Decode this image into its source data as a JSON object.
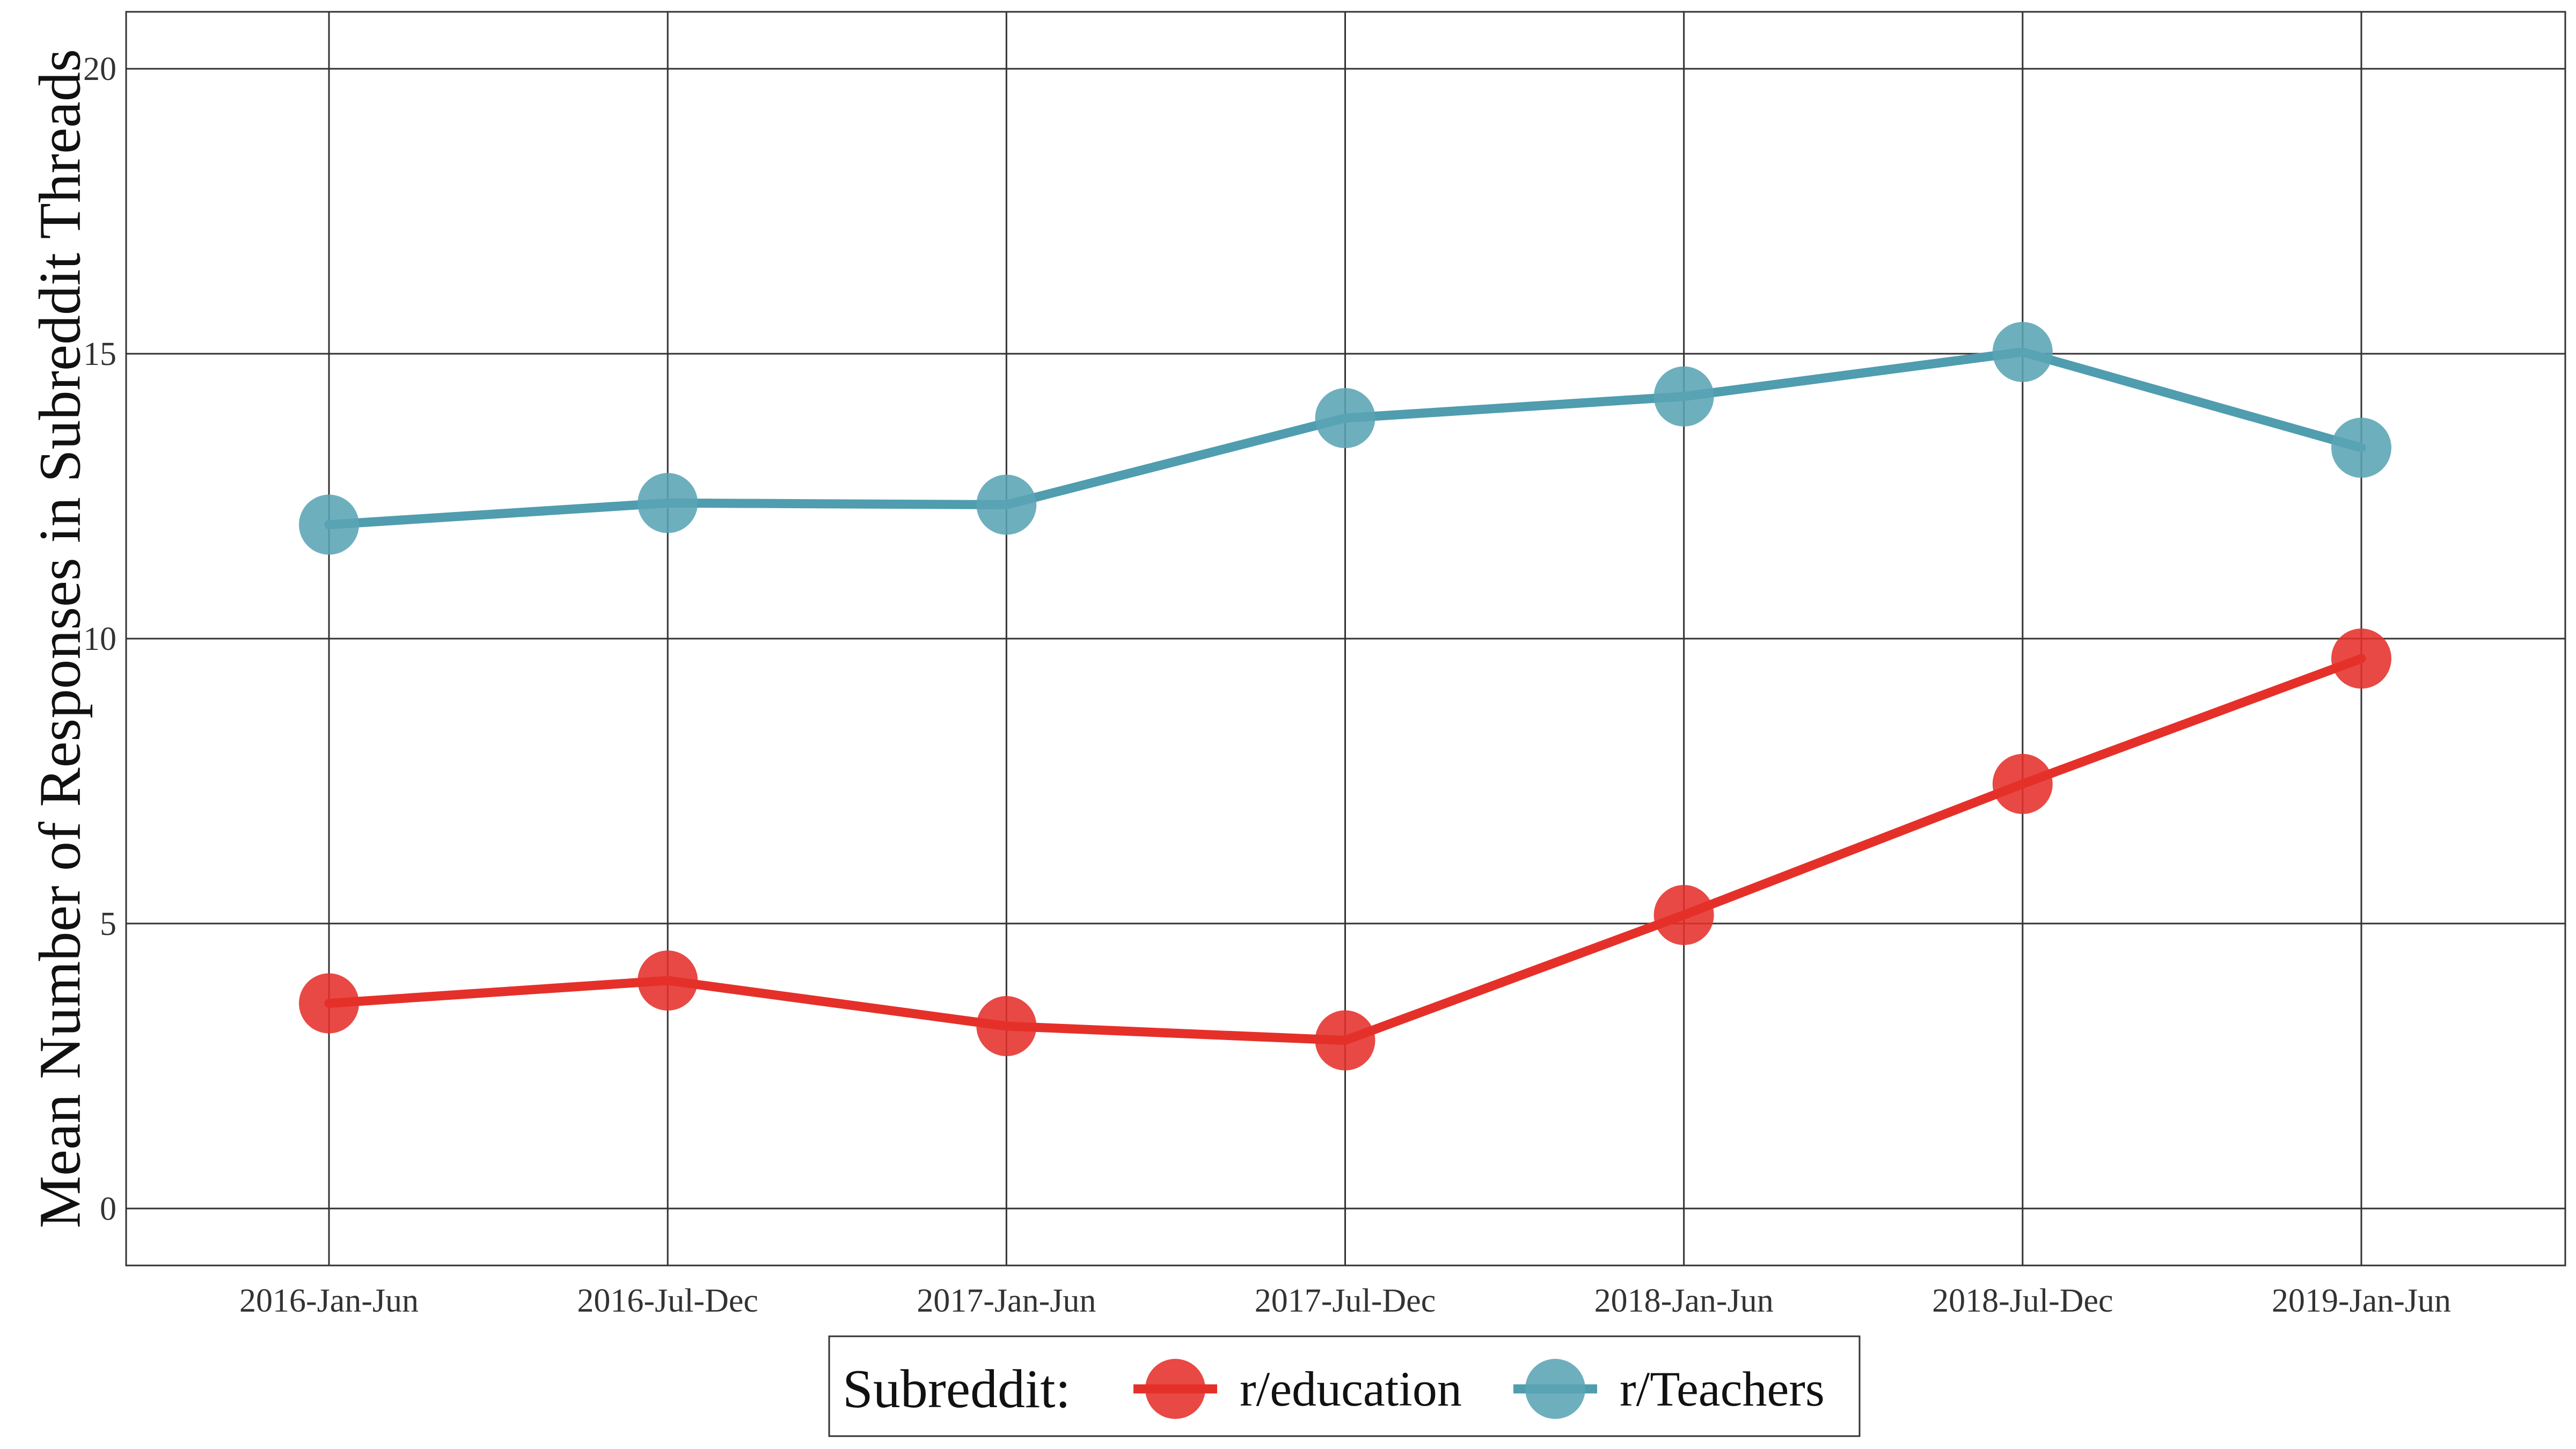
{
  "chart_data": {
    "type": "line",
    "title": "",
    "xlabel": "",
    "ylabel": "Mean Number of Responses in Subreddit Threads",
    "ylim": [
      -1,
      21
    ],
    "yticks": [
      0,
      5,
      10,
      15,
      20
    ],
    "ytick_labels": [
      "0",
      "5",
      "10",
      "15",
      "20"
    ],
    "grid": true,
    "legend_position": "bottom",
    "legend_title": "Subreddit:",
    "categories": [
      "2016-Jan-Jun",
      "2016-Jul-Dec",
      "2017-Jan-Jun",
      "2017-Jul-Dec",
      "2018-Jan-Jun",
      "2018-Jul-Dec",
      "2019-Jan-Jun"
    ],
    "series": [
      {
        "name": "r/education",
        "color": "#e5302a",
        "point_color": "#e5302a",
        "values": [
          3.6,
          4.0,
          3.2,
          2.95,
          5.15,
          7.45,
          9.65
        ]
      },
      {
        "name": "r/Teachers",
        "color": "#4f9daf",
        "point_color": "#5aa4b5",
        "values": [
          12.0,
          12.38,
          12.35,
          13.87,
          14.25,
          15.03,
          13.35
        ]
      }
    ]
  }
}
